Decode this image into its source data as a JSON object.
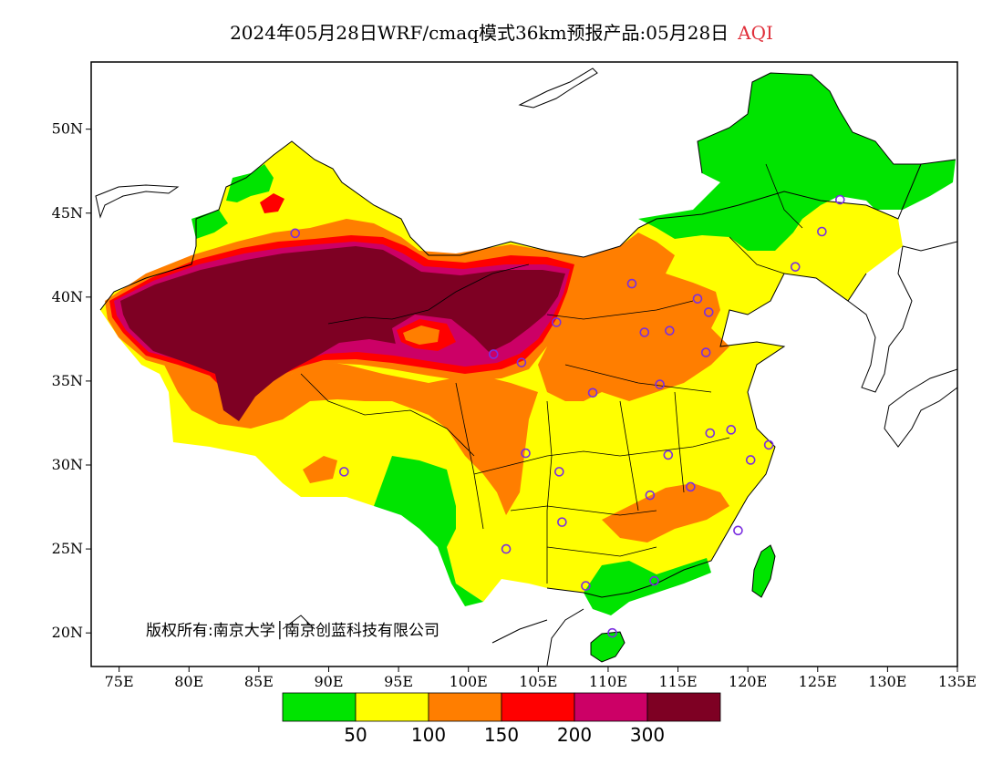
{
  "title": {
    "text": "2024年05月28日WRF/cmaq模式36km预报产品:05月28日",
    "variable": "AQI"
  },
  "map": {
    "lon_range": [
      73,
      135
    ],
    "lat_range": [
      18,
      54
    ],
    "x_ticks": [
      {
        "lon": 75,
        "label": "75E"
      },
      {
        "lon": 80,
        "label": "80E"
      },
      {
        "lon": 85,
        "label": "85E"
      },
      {
        "lon": 90,
        "label": "90E"
      },
      {
        "lon": 95,
        "label": "95E"
      },
      {
        "lon": 100,
        "label": "100E"
      },
      {
        "lon": 105,
        "label": "105E"
      },
      {
        "lon": 110,
        "label": "110E"
      },
      {
        "lon": 115,
        "label": "115E"
      },
      {
        "lon": 120,
        "label": "120E"
      },
      {
        "lon": 125,
        "label": "125E"
      },
      {
        "lon": 130,
        "label": "130E"
      },
      {
        "lon": 135,
        "label": "135E"
      }
    ],
    "y_ticks": [
      {
        "lat": 50,
        "label": "50N"
      },
      {
        "lat": 45,
        "label": "45N"
      },
      {
        "lat": 40,
        "label": "40N"
      },
      {
        "lat": 35,
        "label": "35N"
      },
      {
        "lat": 30,
        "label": "30N"
      },
      {
        "lat": 25,
        "label": "25N"
      },
      {
        "lat": 20,
        "label": "20N"
      }
    ],
    "copyright": "版权所有:南京大学│南京创蓝科技有限公司",
    "stations": [
      [
        87.6,
        43.8
      ],
      [
        101.8,
        36.6
      ],
      [
        103.8,
        36.1
      ],
      [
        106.3,
        38.5
      ],
      [
        111.7,
        40.8
      ],
      [
        112.6,
        37.9
      ],
      [
        114.4,
        38.0
      ],
      [
        116.4,
        39.9
      ],
      [
        117.2,
        39.1
      ],
      [
        117.0,
        36.7
      ],
      [
        113.7,
        34.8
      ],
      [
        108.9,
        34.3
      ],
      [
        104.1,
        30.7
      ],
      [
        106.5,
        29.6
      ],
      [
        106.7,
        26.6
      ],
      [
        102.7,
        25.0
      ],
      [
        108.4,
        22.8
      ],
      [
        113.3,
        23.1
      ],
      [
        110.3,
        20.0
      ],
      [
        113.0,
        28.2
      ],
      [
        115.9,
        28.7
      ],
      [
        114.3,
        30.6
      ],
      [
        117.3,
        31.9
      ],
      [
        118.8,
        32.1
      ],
      [
        120.2,
        30.3
      ],
      [
        121.5,
        31.2
      ],
      [
        119.3,
        26.1
      ],
      [
        123.4,
        41.8
      ],
      [
        125.3,
        43.9
      ],
      [
        126.6,
        45.8
      ],
      [
        91.1,
        29.6
      ]
    ]
  },
  "chart_data": {
    "type": "heatmap",
    "variable": "AQI",
    "legend": {
      "colors": [
        "#00e400",
        "#ffff00",
        "#ff7e00",
        "#ff0000",
        "#cc0066",
        "#7e0023"
      ],
      "thresholds": [
        "50",
        "100",
        "150",
        "200",
        "300"
      ]
    },
    "regions": [
      {
        "name": "northeast",
        "aqi_class": "0-50"
      },
      {
        "name": "north-xinjiang-rim",
        "aqi_class": "0-50"
      },
      {
        "name": "south-coast",
        "aqi_class": "0-50"
      },
      {
        "name": "north-china",
        "aqi_class": "100-150"
      },
      {
        "name": "tarim-alxa-deserts",
        "aqi_class": ">300"
      },
      {
        "name": "tibet-south-china",
        "aqi_class": "50-100"
      }
    ]
  }
}
